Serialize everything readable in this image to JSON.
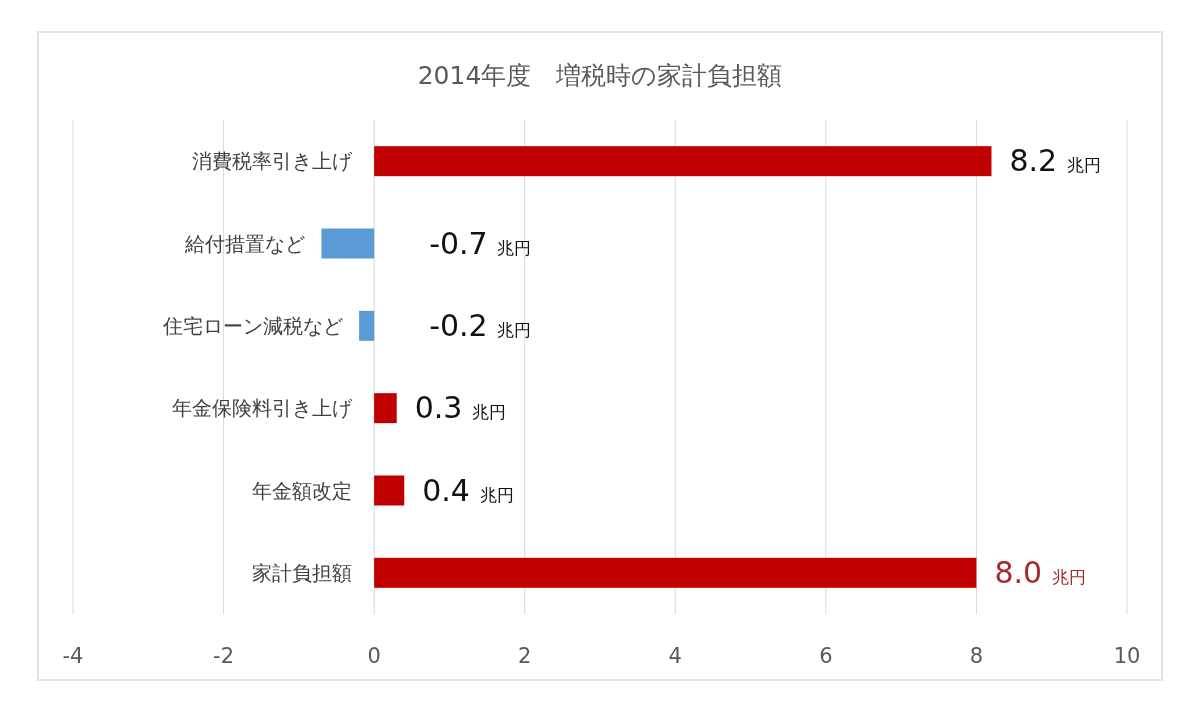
{
  "chart_data": {
    "type": "bar",
    "orientation": "horizontal",
    "title": "2014年度　増税時の家計負担額",
    "categories": [
      "消費税率引き上げ",
      "給付措置など",
      "住宅ローン減税など",
      "年金保険料引き上げ",
      "年金額改定",
      "家計負担額"
    ],
    "values": [
      8.2,
      -0.7,
      -0.2,
      0.3,
      0.4,
      8.0
    ],
    "colors": [
      "#c00000",
      "#5b9bd5",
      "#5b9bd5",
      "#c00000",
      "#c00000",
      "#c00000"
    ],
    "value_labels": [
      "8.2 兆円",
      "-0.7 兆円",
      "-0.2 兆円",
      "0.3 兆円",
      "0.4 兆円",
      "8.0 兆円"
    ],
    "xlim": [
      -4,
      10
    ],
    "xticks": [
      -4,
      -2,
      0,
      2,
      4,
      6,
      8,
      10
    ],
    "grid": "x"
  }
}
